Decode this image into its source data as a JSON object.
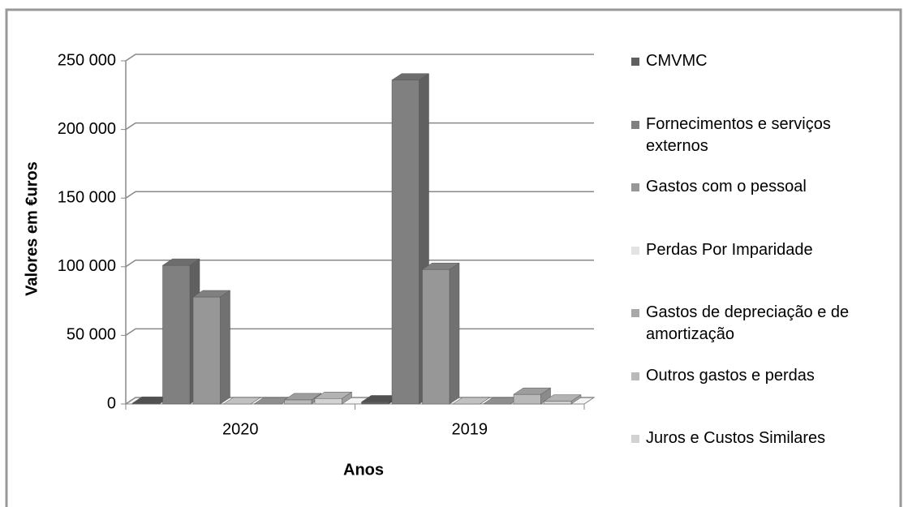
{
  "chart_data": {
    "type": "bar3d",
    "y_axis_label": "Valores em €uros",
    "x_axis_label": "Anos",
    "categories": [
      "2020",
      "2019"
    ],
    "series": [
      {
        "name": "CMVMC",
        "color": "#5f5f5f",
        "values": [
          500,
          1500
        ]
      },
      {
        "name": "Fornecimentos e serviços externos",
        "color": "#808080",
        "values": [
          101000,
          236000
        ]
      },
      {
        "name": "Gastos com o pessoal",
        "color": "#979797",
        "values": [
          78000,
          98000
        ]
      },
      {
        "name": "Perdas Por Imparidade",
        "color": "#e3e3e3",
        "values": [
          0,
          0
        ]
      },
      {
        "name": "Gastos de depreciação e de amortização",
        "color": "#a8a8a8",
        "values": [
          0,
          0
        ]
      },
      {
        "name": "Outros gastos e perdas",
        "color": "#b9b9b9",
        "values": [
          3000,
          7000
        ]
      },
      {
        "name": "Juros e Custos Similares",
        "color": "#d2d2d2",
        "values": [
          4000,
          2000
        ]
      }
    ],
    "ylim": [
      0,
      250000
    ],
    "yticks": [
      0,
      {
        "value": 50000,
        "label": "50 000"
      },
      {
        "value": 100000,
        "label": "100 000"
      },
      {
        "value": 150000,
        "label": "150 000"
      },
      {
        "value": 200000,
        "label": "200 000"
      },
      {
        "value": 250000,
        "label": "250 000"
      }
    ],
    "grid": true,
    "legend": "right"
  }
}
